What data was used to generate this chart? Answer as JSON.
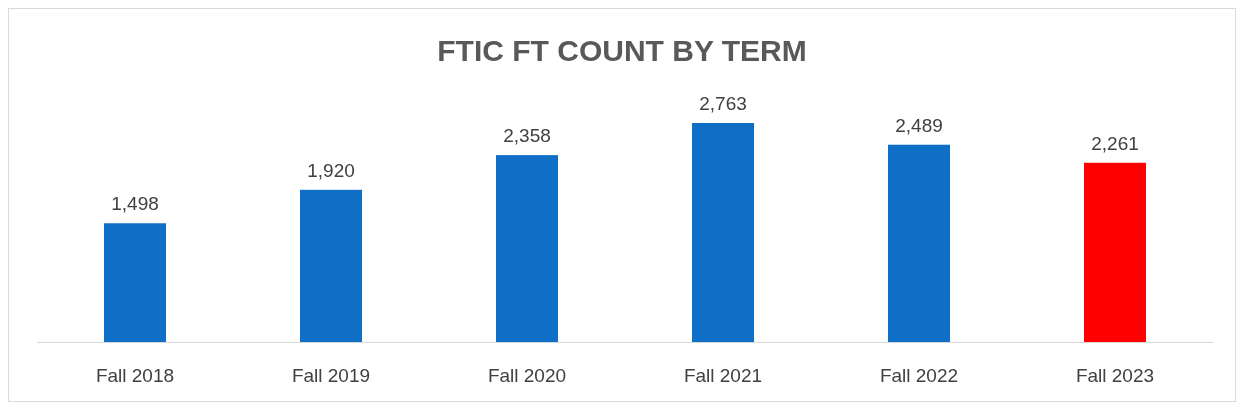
{
  "chart_data": {
    "type": "bar",
    "title": "FTIC FT COUNT BY TERM",
    "categories": [
      "Fall 2018",
      "Fall 2019",
      "Fall 2020",
      "Fall 2021",
      "Fall 2022",
      "Fall 2023"
    ],
    "values": [
      1498,
      1920,
      2358,
      2763,
      2489,
      2261
    ],
    "colors": [
      "#0f6fc6",
      "#0f6fc6",
      "#0f6fc6",
      "#0f6fc6",
      "#0f6fc6",
      "#ff0000"
    ],
    "value_labels": [
      "1,498",
      "1,920",
      "2,358",
      "2,763",
      "2,489",
      "2,261"
    ]
  }
}
